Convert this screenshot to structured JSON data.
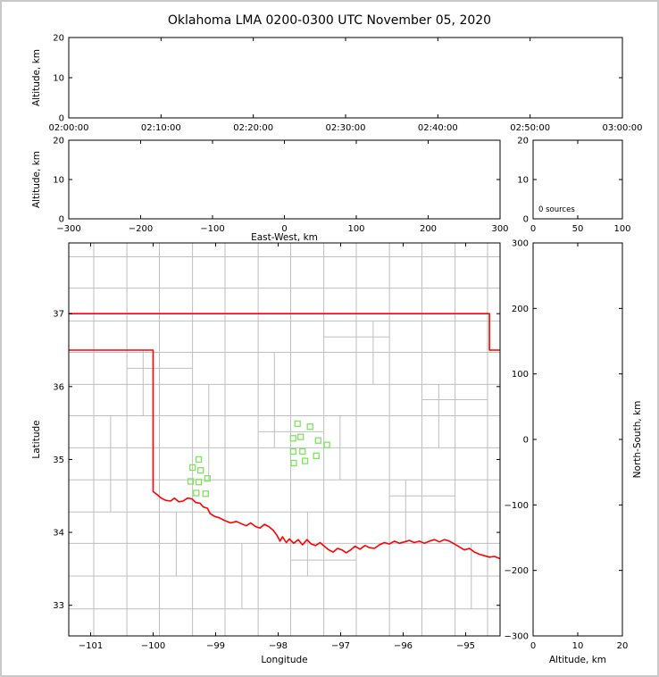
{
  "title": "Oklahoma LMA 0200-0300 UTC November 05, 2020",
  "colors": {
    "background": "#ffffff",
    "figure_border": "#c9c9c9",
    "frame": "#000000",
    "county_line": "#bfbfbf",
    "state_border": "#ff0000",
    "station_marker": "#7fe45f",
    "text": "#000000"
  },
  "chart_data": [
    {
      "id": "time_height_panel",
      "type": "scatter",
      "description": "Altitude vs time panel, no lightning sources plotted during this hour",
      "xlim": [
        0,
        3600
      ],
      "ylim": [
        0,
        20
      ],
      "xticks": {
        "values": [
          0,
          600,
          1200,
          1800,
          2400,
          3000,
          3600
        ],
        "labels": [
          "02:00:00",
          "02:10:00",
          "02:20:00",
          "02:30:00",
          "02:40:00",
          "02:50:00",
          "03:00:00"
        ]
      },
      "yticks": {
        "values": [
          0,
          10,
          20
        ],
        "labels": [
          "0",
          "10",
          "20"
        ]
      },
      "xlabel": "",
      "ylabel": "Altitude, km",
      "points": []
    },
    {
      "id": "ew_height_panel",
      "type": "scatter",
      "description": "Altitude vs East-West distance panel, empty",
      "xlim": [
        -300,
        300
      ],
      "ylim": [
        0,
        20
      ],
      "xticks": {
        "values": [
          -300,
          -200,
          -100,
          0,
          100,
          200,
          300
        ],
        "labels": [
          "−300",
          "−200",
          "−100",
          "0",
          "100",
          "200",
          "300"
        ]
      },
      "yticks": {
        "values": [
          0,
          10,
          20
        ],
        "labels": [
          "0",
          "10",
          "20"
        ]
      },
      "xlabel": "East-West, km",
      "ylabel": "Altitude, km",
      "points": []
    },
    {
      "id": "altitude_histogram_panel",
      "type": "line",
      "description": "Source-count histogram vs altitude, zero sources",
      "xlim": [
        0,
        100
      ],
      "ylim": [
        0,
        20
      ],
      "xticks": {
        "values": [
          0,
          50,
          100
        ],
        "labels": [
          "0",
          "50",
          "100"
        ]
      },
      "yticks": {
        "values": [
          0,
          10,
          20
        ],
        "labels": [
          "0",
          "10",
          "20"
        ]
      },
      "xlabel": "",
      "ylabel": "",
      "annotation": "0 sources",
      "points": []
    },
    {
      "id": "plan_view_map_panel",
      "type": "scatter",
      "description": "Plan-view map of Oklahoma with county lines, state border and LMA station markers",
      "xlim": [
        -101.35,
        -94.45
      ],
      "ylim": [
        32.58,
        37.97
      ],
      "xticks": {
        "values": [
          -101,
          -100,
          -99,
          -98,
          -97,
          -96,
          -95
        ],
        "labels": [
          "−101",
          "−100",
          "−99",
          "−98",
          "−97",
          "−96",
          "−95"
        ]
      },
      "yticks": {
        "values": [
          33,
          34,
          35,
          36,
          37
        ],
        "labels": [
          "33",
          "34",
          "35",
          "36",
          "37"
        ]
      },
      "xlabel": "Longitude",
      "ylabel": "Latitude",
      "stations": [
        [
          -97.69,
          35.49
        ],
        [
          -97.49,
          35.45
        ],
        [
          -97.76,
          35.29
        ],
        [
          -97.64,
          35.31
        ],
        [
          -97.36,
          35.26
        ],
        [
          -97.22,
          35.2
        ],
        [
          -97.76,
          35.11
        ],
        [
          -97.61,
          35.11
        ],
        [
          -97.75,
          34.95
        ],
        [
          -97.57,
          34.98
        ],
        [
          -97.39,
          35.05
        ],
        [
          -99.27,
          35.0
        ],
        [
          -99.37,
          34.89
        ],
        [
          -99.24,
          34.85
        ],
        [
          -99.4,
          34.7
        ],
        [
          -99.27,
          34.69
        ],
        [
          -99.13,
          34.74
        ],
        [
          -99.31,
          34.54
        ],
        [
          -99.16,
          34.53
        ]
      ],
      "state_border": [
        [
          -101.35,
          36.5
        ],
        [
          -100.0,
          36.5
        ],
        [
          -100.0,
          34.56
        ],
        [
          -99.94,
          34.52
        ],
        [
          -99.87,
          34.47
        ],
        [
          -99.8,
          34.44
        ],
        [
          -99.72,
          34.43
        ],
        [
          -99.66,
          34.47
        ],
        [
          -99.59,
          34.42
        ],
        [
          -99.52,
          34.43
        ],
        [
          -99.45,
          34.47
        ],
        [
          -99.38,
          34.46
        ],
        [
          -99.32,
          34.41
        ],
        [
          -99.25,
          34.4
        ],
        [
          -99.2,
          34.35
        ],
        [
          -99.13,
          34.33
        ],
        [
          -99.09,
          34.26
        ],
        [
          -99.02,
          34.22
        ],
        [
          -98.94,
          34.2
        ],
        [
          -98.85,
          34.16
        ],
        [
          -98.76,
          34.13
        ],
        [
          -98.67,
          34.15
        ],
        [
          -98.59,
          34.12
        ],
        [
          -98.51,
          34.09
        ],
        [
          -98.44,
          34.13
        ],
        [
          -98.36,
          34.08
        ],
        [
          -98.29,
          34.06
        ],
        [
          -98.22,
          34.11
        ],
        [
          -98.15,
          34.08
        ],
        [
          -98.08,
          34.03
        ],
        [
          -98.02,
          33.96
        ],
        [
          -97.97,
          33.88
        ],
        [
          -97.93,
          33.94
        ],
        [
          -97.87,
          33.86
        ],
        [
          -97.82,
          33.91
        ],
        [
          -97.75,
          33.85
        ],
        [
          -97.68,
          33.9
        ],
        [
          -97.61,
          33.83
        ],
        [
          -97.54,
          33.9
        ],
        [
          -97.47,
          33.84
        ],
        [
          -97.4,
          33.82
        ],
        [
          -97.33,
          33.86
        ],
        [
          -97.26,
          33.81
        ],
        [
          -97.19,
          33.76
        ],
        [
          -97.12,
          33.73
        ],
        [
          -97.05,
          33.78
        ],
        [
          -96.98,
          33.76
        ],
        [
          -96.91,
          33.72
        ],
        [
          -96.84,
          33.76
        ],
        [
          -96.77,
          33.81
        ],
        [
          -96.69,
          33.77
        ],
        [
          -96.61,
          33.82
        ],
        [
          -96.54,
          33.79
        ],
        [
          -96.46,
          33.78
        ],
        [
          -96.38,
          33.83
        ],
        [
          -96.3,
          33.86
        ],
        [
          -96.22,
          33.84
        ],
        [
          -96.14,
          33.88
        ],
        [
          -96.06,
          33.85
        ],
        [
          -95.98,
          33.87
        ],
        [
          -95.9,
          33.89
        ],
        [
          -95.82,
          33.86
        ],
        [
          -95.74,
          33.88
        ],
        [
          -95.66,
          33.85
        ],
        [
          -95.58,
          33.88
        ],
        [
          -95.5,
          33.9
        ],
        [
          -95.42,
          33.87
        ],
        [
          -95.34,
          33.9
        ],
        [
          -95.26,
          33.88
        ],
        [
          -95.18,
          33.84
        ],
        [
          -95.1,
          33.8
        ],
        [
          -95.02,
          33.76
        ],
        [
          -94.94,
          33.78
        ],
        [
          -94.86,
          33.73
        ],
        [
          -94.78,
          33.7
        ],
        [
          -94.7,
          33.68
        ],
        [
          -94.62,
          33.66
        ],
        [
          -94.54,
          33.67
        ],
        [
          -94.45,
          33.64
        ],
        [
          -94.43,
          33.7
        ],
        [
          -94.43,
          36.5
        ],
        [
          -94.62,
          36.5
        ],
        [
          -94.62,
          37.0
        ],
        [
          -101.35,
          37.0
        ]
      ],
      "counties": {
        "v_lons": [
          -100.95,
          -100.42,
          -99.9,
          -99.37,
          -98.85,
          -98.32,
          -97.8,
          -97.27,
          -96.75,
          -96.22,
          -95.7,
          -95.17,
          -94.65
        ],
        "h_lats": [
          32.95,
          33.4,
          33.85,
          34.28,
          34.72,
          35.16,
          35.6,
          36.03,
          36.47,
          36.9,
          37.35,
          37.78
        ],
        "partials": [
          {
            "o": "v",
            "p": -100.68,
            "a": 34.28,
            "b": 35.6
          },
          {
            "o": "v",
            "p": -100.16,
            "a": 35.6,
            "b": 36.5
          },
          {
            "o": "v",
            "p": -99.63,
            "a": 33.4,
            "b": 34.28
          },
          {
            "o": "v",
            "p": -99.11,
            "a": 34.72,
            "b": 36.03
          },
          {
            "o": "v",
            "p": -98.58,
            "a": 32.95,
            "b": 33.85
          },
          {
            "o": "v",
            "p": -98.06,
            "a": 35.16,
            "b": 36.47
          },
          {
            "o": "v",
            "p": -97.53,
            "a": 33.4,
            "b": 34.28
          },
          {
            "o": "v",
            "p": -97.01,
            "a": 34.72,
            "b": 35.6
          },
          {
            "o": "v",
            "p": -96.48,
            "a": 36.03,
            "b": 36.9
          },
          {
            "o": "v",
            "p": -95.96,
            "a": 33.85,
            "b": 34.72
          },
          {
            "o": "v",
            "p": -95.43,
            "a": 35.16,
            "b": 36.03
          },
          {
            "o": "v",
            "p": -94.91,
            "a": 32.95,
            "b": 33.85
          },
          {
            "o": "h",
            "p": 34.5,
            "a": -96.22,
            "b": -95.17
          },
          {
            "o": "h",
            "p": 35.38,
            "a": -98.32,
            "b": -97.27
          },
          {
            "o": "h",
            "p": 36.25,
            "a": -100.42,
            "b": -99.37
          },
          {
            "o": "h",
            "p": 33.62,
            "a": -97.8,
            "b": -96.75
          },
          {
            "o": "h",
            "p": 36.68,
            "a": -97.27,
            "b": -96.22
          },
          {
            "o": "h",
            "p": 35.82,
            "a": -95.7,
            "b": -94.65
          }
        ]
      }
    },
    {
      "id": "ns_height_panel",
      "type": "scatter",
      "description": "North-South distance vs altitude panel, empty",
      "xlim": [
        0,
        20
      ],
      "ylim": [
        -300,
        300
      ],
      "xticks": {
        "values": [
          0,
          10,
          20
        ],
        "labels": [
          "0",
          "10",
          "20"
        ]
      },
      "yticks": {
        "values": [
          -300,
          -200,
          -100,
          0,
          100,
          200,
          300
        ],
        "labels": [
          "−300",
          "−200",
          "−100",
          "0",
          "100",
          "200",
          "300"
        ]
      },
      "xlabel": "Altitude, km",
      "ylabel": "",
      "ylabel_right": "North-South, km",
      "points": []
    }
  ]
}
